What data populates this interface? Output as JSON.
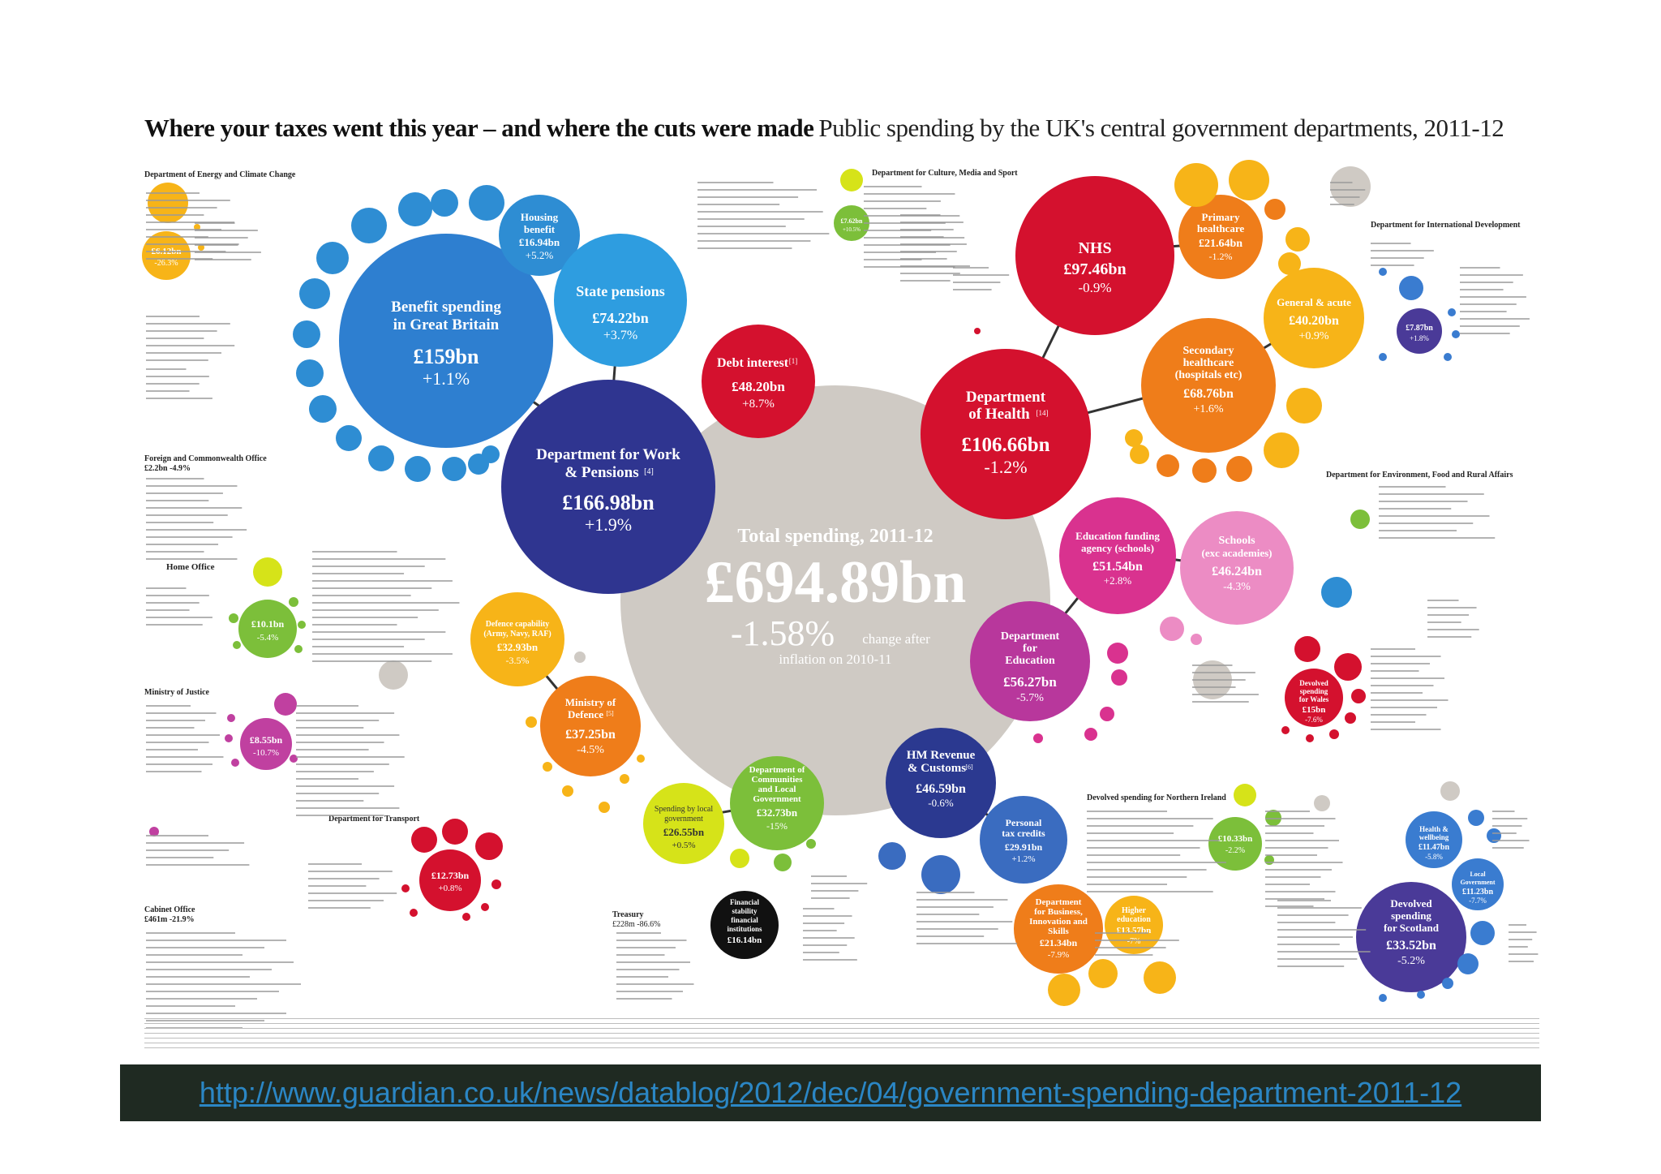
{
  "title": "Where your taxes went this year – and where the cuts were made",
  "subtitle": "Public spending by the UK's central government departments, 2011-12",
  "source_link": "http://www.guardian.co.uk/news/datablog/2012/dec/04/government-spending-department-2011-12",
  "colors": {
    "total": "#cfcac4",
    "work_pensions": "#2f3590",
    "health": "#d4112e",
    "education": "#c040a0",
    "defence": "#f08a1c",
    "hmrc": "#2b3990",
    "communities": "#7cbf3a",
    "blue": "#2e8dd3",
    "orange": "#f5a623",
    "purple": "#4a3a98"
  },
  "chart_data": {
    "type": "bubble",
    "title": "Where your taxes went this year – and where the cuts were made",
    "subtitle": "Public spending by the UK's central government departments, 2011-12",
    "total": {
      "label": "Total spending, 2011-12",
      "value": "£694.89bn",
      "change": "-1.58%",
      "change_note_1": "change after",
      "change_note_2": "inflation on 2010-11"
    },
    "departments": [
      {
        "id": "dwp",
        "name_1": "Department for Work",
        "name_2": "& Pensions",
        "sup": "[4]",
        "value_bn": 166.98,
        "value": "£166.98bn",
        "change": "+1.9%"
      },
      {
        "id": "doh",
        "name_1": "Department",
        "name_2": "of Health",
        "sup": "[14]",
        "value_bn": 106.66,
        "value": "£106.66bn",
        "change": "-1.2%"
      },
      {
        "id": "dfe",
        "name_1": "Department",
        "name_2": "for",
        "name_3": "Education",
        "value_bn": 56.27,
        "value": "£56.27bn",
        "change": "-5.7%"
      },
      {
        "id": "mod",
        "name_1": "Ministry of",
        "name_2": "Defence",
        "sup": "[5]",
        "value_bn": 37.25,
        "value": "£37.25bn",
        "change": "-4.5%"
      },
      {
        "id": "hmrc",
        "name_1": "HM Revenue",
        "name_2": "& Customs",
        "sup": "[6]",
        "value_bn": 46.59,
        "value": "£46.59bn",
        "change": "-0.6%"
      },
      {
        "id": "dclg",
        "name_1": "Department of",
        "name_2": "Communities",
        "name_3": "and Local",
        "name_4": "Government",
        "value_bn": 32.73,
        "value": "£32.73bn",
        "change": "-15%"
      },
      {
        "id": "debt",
        "name_1": "Debt interest",
        "sup": "[1]",
        "value_bn": 48.2,
        "value": "£48.20bn",
        "change": "+8.7%"
      }
    ],
    "sub_items": [
      {
        "id": "benefit",
        "name_1": "Benefit spending",
        "name_2": "in Great Britain",
        "value": "£159bn",
        "change": "+1.1%"
      },
      {
        "id": "pensions",
        "name_1": "State pensions",
        "value": "£74.22bn",
        "change": "+3.7%"
      },
      {
        "id": "housing",
        "name_1": "Housing",
        "name_2": "benefit",
        "value": "£16.94bn",
        "change": "+5.2%"
      },
      {
        "id": "nhs",
        "name_1": "NHS",
        "value": "£97.46bn",
        "change": "-0.9%"
      },
      {
        "id": "primary",
        "name_1": "Primary",
        "name_2": "healthcare",
        "value": "£21.64bn",
        "change": "-1.2%"
      },
      {
        "id": "secondary",
        "name_1": "Secondary",
        "name_2": "healthcare",
        "name_3": "(hospitals etc)",
        "value": "£68.76bn",
        "change": "+1.6%"
      },
      {
        "id": "general",
        "name_1": "General & acute",
        "value": "£40.20bn",
        "change": "+0.9%"
      },
      {
        "id": "efa",
        "name_1": "Education funding",
        "name_2": "agency (schools)",
        "value": "£51.54bn",
        "change": "+2.8%"
      },
      {
        "id": "schools",
        "name_1": "Schools",
        "name_2": "(exc academies)",
        "value": "£46.24bn",
        "change": "-4.3%"
      },
      {
        "id": "defcap",
        "name_1": "Defence capability",
        "name_2": "(Army, Navy, RAF)",
        "value": "£32.93bn",
        "change": "-3.5%"
      },
      {
        "id": "localgov",
        "name_1": "Spending by local",
        "name_2": "government",
        "value": "£26.55bn",
        "change": "+0.5%"
      },
      {
        "id": "taxcred",
        "name_1": "Personal",
        "name_2": "tax credits",
        "value": "£29.91bn",
        "change": "+1.2%"
      },
      {
        "id": "bis",
        "name_1": "Department",
        "name_2": "for Business,",
        "name_3": "Innovation and",
        "name_4": "Skills",
        "value": "£21.34bn",
        "change": "-7.9%"
      },
      {
        "id": "higher",
        "name_1": "Higher",
        "name_2": "education",
        "value": "£13.57bn",
        "change": "-7%"
      },
      {
        "id": "scotland",
        "name_1": "Devolved",
        "name_2": "spending",
        "name_3": "for Scotland",
        "value": "£33.52bn",
        "change": "-5.2%"
      },
      {
        "id": "transport",
        "name_1": "£12.73bn",
        "value": "£12.73bn",
        "change": "+0.8%"
      },
      {
        "id": "finstab",
        "name_1": "Financial",
        "name_2": "stability",
        "name_3": "financial",
        "name_4": "institutions",
        "value": "£16.14bn"
      },
      {
        "id": "wales",
        "name_1": "Devolved",
        "name_2": "spending",
        "name_3": "for Wales",
        "value": "£15bn",
        "change": "-7.6%"
      },
      {
        "id": "home",
        "name_1": "£10.1bn",
        "value": "£10.1bn",
        "change": "-5.4%"
      },
      {
        "id": "justice",
        "name_1": "£8.55bn",
        "value": "£8.55bn",
        "change": "-10.7%"
      },
      {
        "id": "decc",
        "name_1": "£6.12bn",
        "value": "£6.12bn",
        "change": "-26.3%"
      },
      {
        "id": "nireland",
        "name_1": "£10.33bn",
        "value": "£10.33bn",
        "change": "-2.2%"
      },
      {
        "id": "health_wb",
        "name_1": "Health &",
        "name_2": "wellbeing",
        "value": "£11.47bn",
        "change": "-5.8%"
      },
      {
        "id": "localgov2",
        "name_1": "Local",
        "name_2": "Government",
        "value": "£11.23bn",
        "change": "-7.7%"
      },
      {
        "id": "intdev",
        "name_1": "£7.87bn",
        "value": "£7.87bn",
        "change": "+1.8%"
      },
      {
        "id": "dcms",
        "name_1": "£7.62bn",
        "value": "£7.62bn",
        "change": "+10.5%"
      }
    ],
    "section_labels": [
      "Department of Energy and Climate Change",
      "Department for Culture, Media and Sport",
      "Department for International Development",
      "Foreign and Commonwealth Office",
      "Home Office",
      "Ministry of Justice",
      "Department for Transport",
      "Cabinet Office",
      "Department for Environment, Food and Rural Affairs",
      "Devolved spending for Northern Ireland",
      "Treasury"
    ],
    "section_values": {
      "fco": "£2.2bn -4.9%",
      "cabinet": "£461m -21.9%",
      "treasury": "£228m -86.6%"
    }
  }
}
